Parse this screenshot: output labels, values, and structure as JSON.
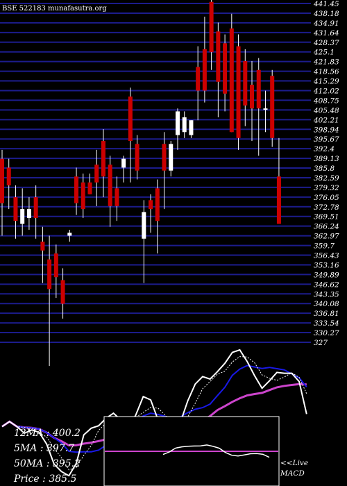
{
  "chart_data": {
    "type": "candlestick",
    "title": "BSE 522183 munafasutra.org",
    "price_axis": {
      "ticks": [
        "441.45",
        "438.18",
        "434.91",
        "431.64",
        "428.37",
        "425.1",
        "421.83",
        "418.56",
        "415.29",
        "412.02",
        "408.75",
        "405.48",
        "402.21",
        "398.94",
        "395.67",
        "392.4",
        "389.13",
        "385.8",
        "382.59",
        "379.32",
        "376.05",
        "372.78",
        "369.51",
        "366.24",
        "362.97",
        "359.7",
        "356.43",
        "353.16",
        "349.89",
        "346.62",
        "343.35",
        "340.08",
        "336.81",
        "333.54",
        "330.27",
        "327"
      ],
      "range": [
        327,
        441.45
      ]
    },
    "candles": [
      {
        "o": 389,
        "h": 392,
        "l": 363,
        "c": 374
      },
      {
        "o": 386,
        "h": 389,
        "l": 372,
        "c": 380
      },
      {
        "o": 376,
        "h": 380,
        "l": 362,
        "c": 368
      },
      {
        "o": 367,
        "h": 379,
        "l": 363,
        "c": 372
      },
      {
        "o": 369,
        "h": 376,
        "l": 365,
        "c": 372
      },
      {
        "o": 376,
        "h": 380,
        "l": 362,
        "c": 369
      },
      {
        "o": 361,
        "h": 366,
        "l": 347,
        "c": 358
      },
      {
        "o": 355,
        "h": 363,
        "l": 319,
        "c": 345
      },
      {
        "o": 357,
        "h": 360,
        "l": 342,
        "c": 349
      },
      {
        "o": 348,
        "h": 352,
        "l": 335,
        "c": 340
      },
      {
        "o": 363,
        "h": 365,
        "l": 361,
        "c": 364
      },
      {
        "o": 383,
        "h": 386,
        "l": 370,
        "c": 374
      },
      {
        "o": 381,
        "h": 384,
        "l": 369,
        "c": 372
      },
      {
        "o": 381,
        "h": 384,
        "l": 377,
        "c": 377
      },
      {
        "o": 387,
        "h": 392,
        "l": 373,
        "c": 381
      },
      {
        "o": 395,
        "h": 399,
        "l": 376,
        "c": 383
      },
      {
        "o": 387,
        "h": 390,
        "l": 366,
        "c": 373
      },
      {
        "o": 379,
        "h": 383,
        "l": 368,
        "c": 373
      },
      {
        "o": 386,
        "h": 390,
        "l": 381,
        "c": 389
      },
      {
        "o": 410,
        "h": 413,
        "l": 381,
        "c": 395
      },
      {
        "o": 394,
        "h": 397,
        "l": 382,
        "c": 385
      },
      {
        "o": 362,
        "h": 375,
        "l": 347,
        "c": 371
      },
      {
        "o": 375,
        "h": 377,
        "l": 364,
        "c": 372
      },
      {
        "o": 379,
        "h": 382,
        "l": 357,
        "c": 368
      },
      {
        "o": 394,
        "h": 398,
        "l": 372,
        "c": 385
      },
      {
        "o": 385,
        "h": 395,
        "l": 383,
        "c": 394
      },
      {
        "o": 397,
        "h": 406,
        "l": 392,
        "c": 405
      },
      {
        "o": 398,
        "h": 405,
        "l": 396,
        "c": 403
      },
      {
        "o": 397,
        "h": 402,
        "l": 396,
        "c": 402
      },
      {
        "o": 420,
        "h": 427,
        "l": 402,
        "c": 412
      },
      {
        "o": 426,
        "h": 437,
        "l": 408,
        "c": 412
      },
      {
        "o": 442,
        "h": 443,
        "l": 419,
        "c": 425
      },
      {
        "o": 432,
        "h": 435,
        "l": 403,
        "c": 415
      },
      {
        "o": 428,
        "h": 431,
        "l": 405,
        "c": 411
      },
      {
        "o": 433,
        "h": 438,
        "l": 398,
        "c": 398
      },
      {
        "o": 427,
        "h": 431,
        "l": 392,
        "c": 396
      },
      {
        "o": 422,
        "h": 426,
        "l": 400,
        "c": 407
      },
      {
        "o": 414,
        "h": 422,
        "l": 395,
        "c": 406
      },
      {
        "o": 419,
        "h": 423,
        "l": 390,
        "c": 406
      },
      {
        "o": 406,
        "h": 412,
        "l": 398,
        "c": 406
      },
      {
        "o": 417,
        "h": 419,
        "l": 393,
        "c": 396
      },
      {
        "o": 383,
        "h": 396,
        "l": 367,
        "c": 367
      }
    ],
    "ma_lines": [
      {
        "name": "12MA",
        "color": "#1919e6",
        "value": "400.2"
      },
      {
        "name": "5MA",
        "color": "#ffffff",
        "value": "397.7"
      },
      {
        "name": "50MA",
        "color": "#cc44cc",
        "value": "395.2"
      }
    ],
    "price_label": "Price",
    "price_value": "385.5",
    "macd_label_1": "<<Live",
    "macd_label_2": "MACD",
    "colors": {
      "up": "#ffffff",
      "down": "#cc0000",
      "grid": "#1c1c8c",
      "background": "#000000",
      "ma_slow": "#cc44cc",
      "ma_fast": "#1919e6",
      "ma_short": "#ffffff"
    }
  },
  "info": {
    "ma12": "12MA : 400.2",
    "ma5": "5MA : 397.7",
    "ma50": "50MA : 395.2",
    "price": "Price    : 385.5"
  }
}
